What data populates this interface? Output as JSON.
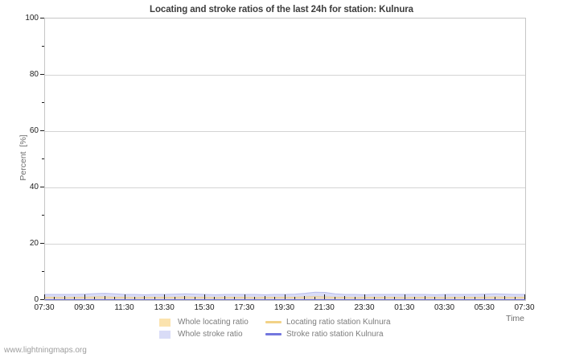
{
  "title": "Locating and stroke ratios of the last 24h for station: Kulnura",
  "watermark": "www.lightningmaps.org",
  "axes": {
    "y_label": "Percent  [%]",
    "x_label": "Time",
    "y_ticks": [
      0,
      20,
      40,
      60,
      80,
      100
    ],
    "y_minor_ticks": [
      10,
      30,
      50,
      70,
      90
    ],
    "y_grid_values": [
      20,
      40,
      60,
      80
    ],
    "x_tick_labels": [
      "07:30",
      "09:30",
      "11:30",
      "13:30",
      "15:30",
      "17:30",
      "19:30",
      "21:30",
      "23:30",
      "01:30",
      "03:30",
      "05:30",
      "07:30"
    ]
  },
  "legend": {
    "items": [
      {
        "label": "Whole locating ratio",
        "marker": "area",
        "color": "#fbe3ae",
        "column": 0
      },
      {
        "label": "Whole stroke ratio",
        "marker": "area",
        "color": "#d9dcf7",
        "column": 0
      },
      {
        "label": "Locating ratio station Kulnura",
        "marker": "line",
        "color": "#f2d287",
        "column": 1
      },
      {
        "label": "Stroke ratio station Kulnura",
        "marker": "line",
        "color": "#7377de",
        "column": 1
      }
    ]
  },
  "chart_data": {
    "type": "area",
    "title": "Locating and stroke ratios of the last 24h for station: Kulnura",
    "xlabel": "Time",
    "ylabel": "Percent [%]",
    "ylim": [
      0,
      100
    ],
    "grid": "horizontal-only",
    "legend_position": "bottom-center",
    "x": [
      "07:30",
      "08:00",
      "08:30",
      "09:00",
      "09:30",
      "10:00",
      "10:30",
      "11:00",
      "11:30",
      "12:00",
      "12:30",
      "13:00",
      "13:30",
      "14:00",
      "14:30",
      "15:00",
      "15:30",
      "16:00",
      "16:30",
      "17:00",
      "17:30",
      "18:00",
      "18:30",
      "19:00",
      "19:30",
      "20:00",
      "20:30",
      "21:00",
      "21:30",
      "22:00",
      "22:30",
      "23:00",
      "23:30",
      "00:00",
      "00:30",
      "01:00",
      "01:30",
      "02:00",
      "02:30",
      "03:00",
      "03:30",
      "04:00",
      "04:30",
      "05:00",
      "05:30",
      "06:00",
      "06:30",
      "07:00",
      "07:30"
    ],
    "series": [
      {
        "id": "whole-stroke-ratio",
        "name": "Whole stroke ratio",
        "kind": "area",
        "fill": "#d9dcf7",
        "fill_opacity": 1,
        "stroke": "#b9bdee",
        "values": [
          2.0,
          2.0,
          2.0,
          2.0,
          2.1,
          2.3,
          2.4,
          2.2,
          2.0,
          2.0,
          1.9,
          2.0,
          2.0,
          2.1,
          2.2,
          2.1,
          2.0,
          1.9,
          2.0,
          2.0,
          2.0,
          2.0,
          1.9,
          2.0,
          2.0,
          2.1,
          2.4,
          2.8,
          2.7,
          2.2,
          2.0,
          2.0,
          1.9,
          2.0,
          2.0,
          2.0,
          2.0,
          2.0,
          2.0,
          1.9,
          2.0,
          2.0,
          2.0,
          2.0,
          2.1,
          2.2,
          2.1,
          2.0,
          2.0
        ]
      },
      {
        "id": "whole-locating-ratio",
        "name": "Whole locating ratio",
        "kind": "area",
        "fill": "#f9deaa",
        "fill_opacity": 0.65,
        "stroke": "#e9cd96",
        "values": [
          1.0,
          1.0,
          0.9,
          1.0,
          1.0,
          1.1,
          1.1,
          1.0,
          1.0,
          0.9,
          1.0,
          1.0,
          1.0,
          1.0,
          1.1,
          1.0,
          1.0,
          0.9,
          1.0,
          1.0,
          1.0,
          0.9,
          1.0,
          1.0,
          1.0,
          1.0,
          1.1,
          1.2,
          1.1,
          1.0,
          1.0,
          0.9,
          1.0,
          1.0,
          1.0,
          1.0,
          0.9,
          1.0,
          1.0,
          1.0,
          0.9,
          1.0,
          1.0,
          1.0,
          1.0,
          1.1,
          1.0,
          1.0,
          1.0
        ]
      },
      {
        "id": "locating-ratio-station-kulnura",
        "name": "Locating ratio station Kulnura",
        "kind": "line",
        "color": "#f2d287",
        "values": [
          0.1,
          0.1,
          0.1,
          0.1,
          0.1,
          0.1,
          0.1,
          0.1,
          0.1,
          0.1,
          0.1,
          0.1,
          0.1,
          0.1,
          0.1,
          0.1,
          0.1,
          0.1,
          0.1,
          0.1,
          0.1,
          0.1,
          0.1,
          0.1,
          0.1,
          0.1,
          0.1,
          0.1,
          0.1,
          0.1,
          0.1,
          0.1,
          0.1,
          0.1,
          0.1,
          0.1,
          0.1,
          0.1,
          0.1,
          0.1,
          0.1,
          0.1,
          0.1,
          0.1,
          0.1,
          0.1,
          0.1,
          0.1,
          0.1
        ]
      },
      {
        "id": "stroke-ratio-station-kulnura",
        "name": "Stroke ratio station Kulnura",
        "kind": "line",
        "color": "#7377de",
        "values": [
          0.15,
          0.15,
          0.15,
          0.15,
          0.15,
          0.15,
          0.15,
          0.15,
          0.15,
          0.15,
          0.15,
          0.15,
          0.15,
          0.15,
          0.15,
          0.15,
          0.15,
          0.15,
          0.15,
          0.15,
          0.15,
          0.15,
          0.15,
          0.15,
          0.15,
          0.15,
          0.15,
          0.15,
          0.15,
          0.15,
          0.15,
          0.15,
          0.15,
          0.15,
          0.15,
          0.15,
          0.15,
          0.15,
          0.15,
          0.15,
          0.15,
          0.15,
          0.15,
          0.15,
          0.15,
          0.15,
          0.15,
          0.15,
          0.15
        ]
      }
    ]
  },
  "colors": {
    "plot_border": "#c6c6c6",
    "gridline": "#d4d4d4",
    "tick": "#1c1c1c",
    "title_text": "#3d3d3d",
    "axis_text": "#6e6e6e",
    "legend_text": "#7c7c7c",
    "watermark_text": "#9d9d9d"
  }
}
